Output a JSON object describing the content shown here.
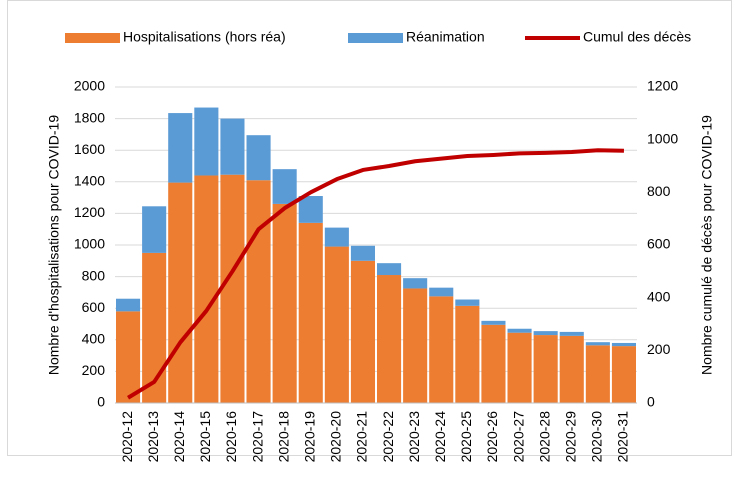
{
  "chart_data": {
    "type": "bar",
    "stacked": true,
    "categories": [
      "2020-12",
      "2020-13",
      "2020-14",
      "2020-15",
      "2020-16",
      "2020-17",
      "2020-18",
      "2020-19",
      "2020-20",
      "2020-21",
      "2020-22",
      "2020-23",
      "2020-24",
      "2020-25",
      "2020-26",
      "2020-27",
      "2020-28",
      "2020-29",
      "2020-30",
      "2020-31"
    ],
    "series": [
      {
        "name": "Hospitalisations (hors réa)",
        "color": "#ED7D31",
        "axis": "y",
        "values": [
          580,
          950,
          1395,
          1440,
          1445,
          1410,
          1260,
          1140,
          990,
          900,
          810,
          725,
          675,
          615,
          495,
          445,
          430,
          425,
          365,
          360
        ]
      },
      {
        "name": "Réanimation",
        "color": "#5B9BD5",
        "axis": "y",
        "values": [
          80,
          295,
          440,
          430,
          355,
          285,
          220,
          170,
          120,
          95,
          75,
          65,
          55,
          40,
          25,
          25,
          25,
          25,
          20,
          20
        ]
      },
      {
        "name": "Cumul des décès",
        "color": "#C00000",
        "type": "line",
        "axis": "y2",
        "values": [
          20,
          80,
          230,
          350,
          500,
          660,
          740,
          800,
          850,
          885,
          900,
          918,
          928,
          938,
          942,
          948,
          950,
          953,
          960,
          958
        ]
      }
    ],
    "ylabel": "Nombre d'hospitalisations pour COVID-19",
    "y2label": "Nombre cumulé de décès pour COVID-19",
    "ylim": [
      0,
      2000
    ],
    "yticks": [
      0,
      200,
      400,
      600,
      800,
      1000,
      1200,
      1400,
      1600,
      1800,
      2000
    ],
    "y2lim": [
      0,
      1200
    ],
    "y2ticks": [
      0,
      200,
      400,
      600,
      800,
      1000,
      1200
    ],
    "grid": true,
    "legend": "top"
  }
}
